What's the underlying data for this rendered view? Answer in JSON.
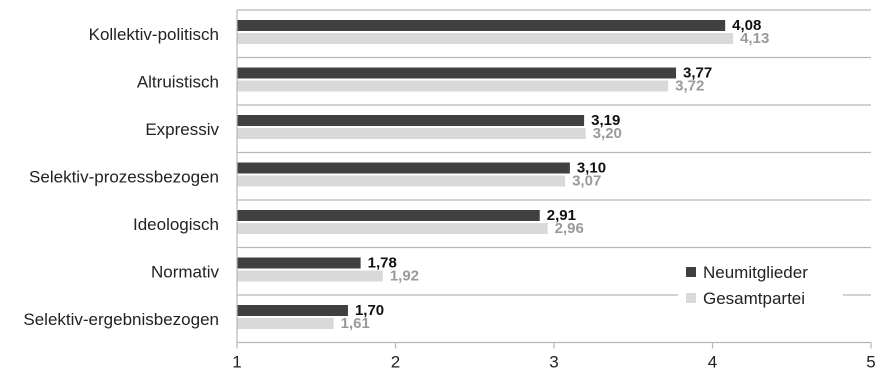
{
  "chart_data": {
    "type": "bar",
    "orientation": "horizontal",
    "categories": [
      "Kollektiv-politisch",
      "Altruistisch",
      "Expressiv",
      "Selektiv-prozessbezogen",
      "Ideologisch",
      "Normativ",
      "Selektiv-ergebnisbezogen"
    ],
    "series": [
      {
        "name": "Neumitglieder",
        "values": [
          4.08,
          3.77,
          3.19,
          3.1,
          2.91,
          1.78,
          1.7
        ],
        "labels": [
          "4,08",
          "3,77",
          "3,19",
          "3,10",
          "2,91",
          "1,78",
          "1,70"
        ],
        "color": "#404040"
      },
      {
        "name": "Gesamtpartei",
        "values": [
          4.13,
          3.72,
          3.2,
          3.07,
          2.96,
          1.92,
          1.61
        ],
        "labels": [
          "4,13",
          "3,72",
          "3,20",
          "3,07",
          "2,96",
          "1,92",
          "1,61"
        ],
        "color": "#d9d9d9"
      }
    ],
    "xlim": [
      1,
      5
    ],
    "ticks": [
      1,
      2,
      3,
      4,
      5
    ],
    "tick_labels": [
      "1",
      "2",
      "3",
      "4",
      "5"
    ],
    "grid": "horizontal separators between categories",
    "legend_position": "bottom-right"
  }
}
